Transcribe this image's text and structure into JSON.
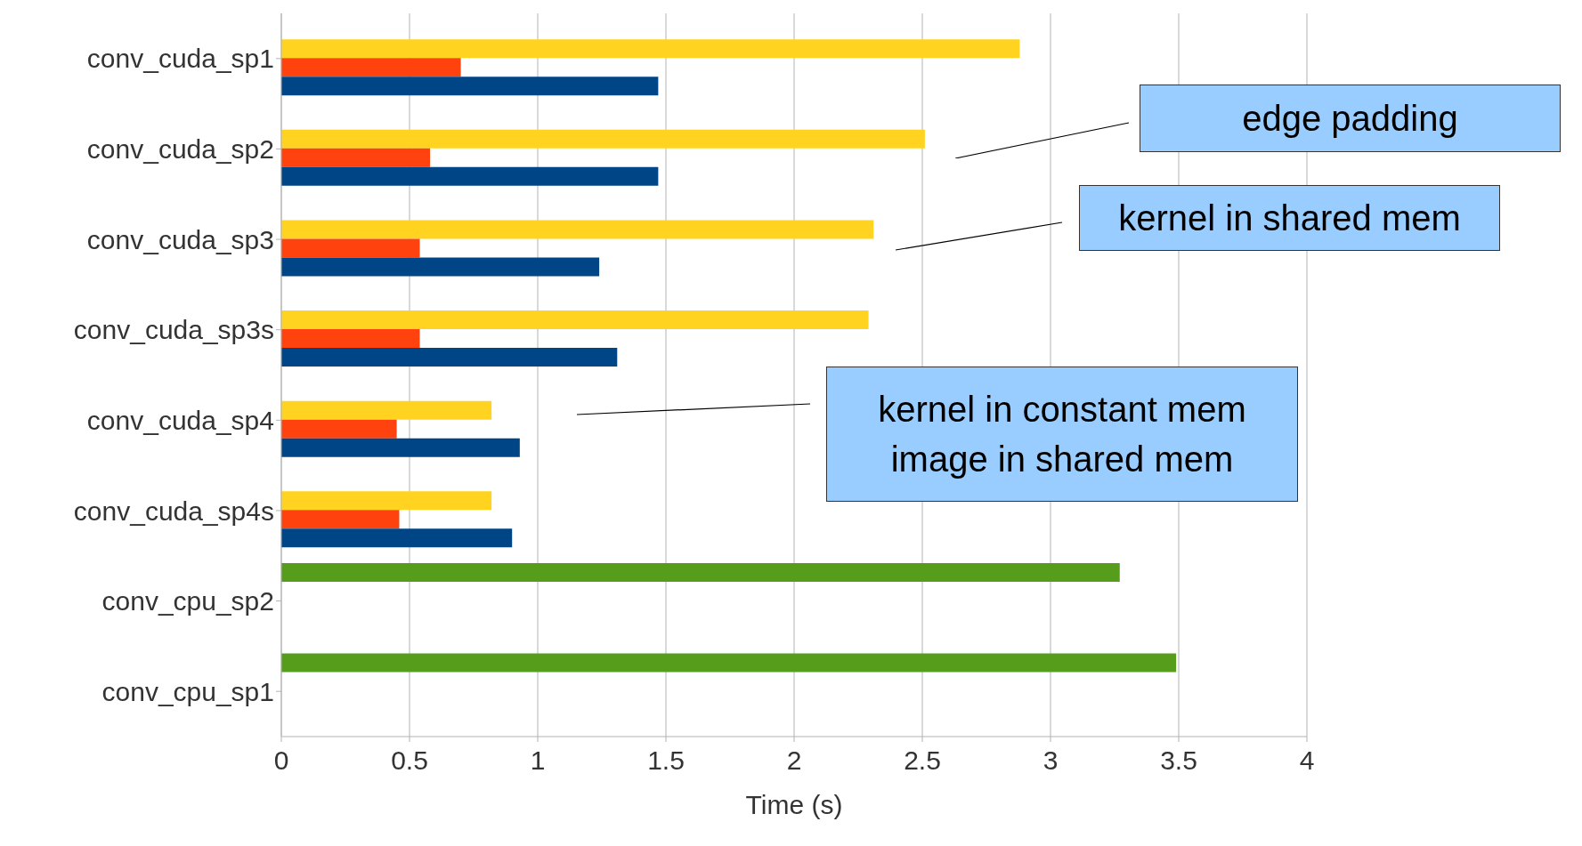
{
  "chart_data": {
    "type": "bar",
    "orientation": "horizontal",
    "xlabel": "Time (s)",
    "categories": [
      "conv_cuda_sp1",
      "conv_cuda_sp2",
      "conv_cuda_sp3",
      "conv_cuda_sp3s",
      "conv_cuda_sp4",
      "conv_cuda_sp4s",
      "conv_cpu_sp2",
      "conv_cpu_sp1"
    ],
    "series": [
      {
        "color": "#579d1c",
        "values": [
          null,
          null,
          null,
          null,
          null,
          null,
          3.27,
          3.49
        ]
      },
      {
        "color": "#ffd320",
        "values": [
          2.88,
          2.51,
          2.31,
          2.29,
          0.82,
          0.82,
          null,
          null
        ]
      },
      {
        "color": "#ff420e",
        "values": [
          0.7,
          0.58,
          0.54,
          0.54,
          0.45,
          0.46,
          null,
          null
        ]
      },
      {
        "color": "#004586",
        "values": [
          1.47,
          1.47,
          1.24,
          1.31,
          0.93,
          0.9,
          null,
          null
        ]
      }
    ],
    "xlim": [
      0,
      4
    ],
    "xticks": [
      0,
      0.5,
      1,
      1.5,
      2,
      2.5,
      3,
      3.5,
      4
    ],
    "grid": "x",
    "legend": false,
    "annotations": [
      "edge padding",
      "kernel in shared mem",
      "kernel in constant mem\nimage in shared mem"
    ]
  }
}
